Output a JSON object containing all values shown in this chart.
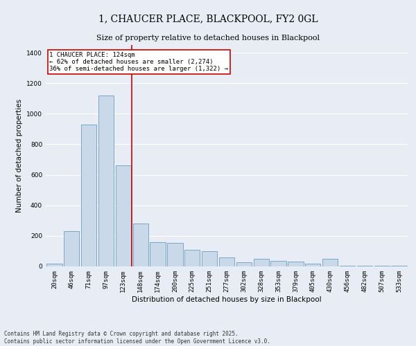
{
  "title": "1, CHAUCER PLACE, BLACKPOOL, FY2 0GL",
  "subtitle": "Size of property relative to detached houses in Blackpool",
  "xlabel": "Distribution of detached houses by size in Blackpool",
  "ylabel": "Number of detached properties",
  "footer_line1": "Contains HM Land Registry data © Crown copyright and database right 2025.",
  "footer_line2": "Contains public sector information licensed under the Open Government Licence v3.0.",
  "bar_color": "#c9d9ea",
  "bar_edge_color": "#6a9fc0",
  "bg_color": "#e8edf5",
  "grid_color": "#ffffff",
  "annotation_box_color": "#cc0000",
  "vline_color": "#cc0000",
  "categories": [
    "20sqm",
    "46sqm",
    "71sqm",
    "97sqm",
    "123sqm",
    "148sqm",
    "174sqm",
    "200sqm",
    "225sqm",
    "251sqm",
    "277sqm",
    "302sqm",
    "328sqm",
    "353sqm",
    "379sqm",
    "405sqm",
    "430sqm",
    "456sqm",
    "482sqm",
    "507sqm",
    "533sqm"
  ],
  "values": [
    20,
    230,
    930,
    1120,
    660,
    280,
    160,
    155,
    110,
    100,
    60,
    25,
    50,
    35,
    30,
    20,
    48,
    5,
    5,
    5,
    3
  ],
  "annotation_text": "1 CHAUCER PLACE: 124sqm\n← 62% of detached houses are smaller (2,274)\n36% of semi-detached houses are larger (1,322) →",
  "vline_x": 4.5,
  "ylim": [
    0,
    1450
  ],
  "yticks": [
    0,
    200,
    400,
    600,
    800,
    1000,
    1200,
    1400
  ],
  "title_fontsize": 10,
  "subtitle_fontsize": 8,
  "ylabel_fontsize": 7.5,
  "xlabel_fontsize": 7.5,
  "tick_fontsize": 6.5,
  "footer_fontsize": 5.5,
  "ann_fontsize": 6.5
}
